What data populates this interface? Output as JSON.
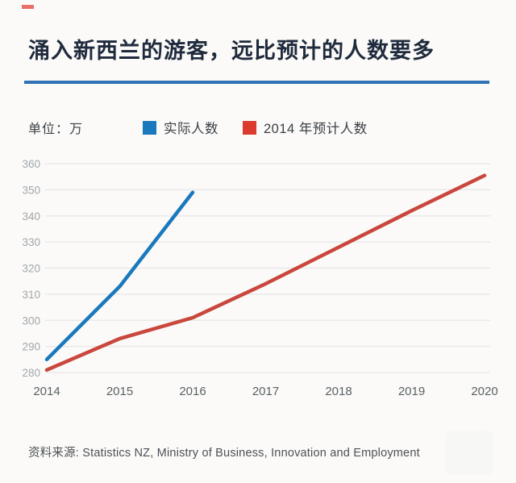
{
  "header": {
    "title": "涌入新西兰的游客，远比预计的人数要多",
    "rule_color": "#2f73b4"
  },
  "legend": {
    "unit_label": "单位：万",
    "items": [
      {
        "label": "实际人数",
        "color": "#1a79bd"
      },
      {
        "label": "2014 年预计人数",
        "color": "#da3b2e"
      }
    ]
  },
  "footer": {
    "source": "资料来源: Statistics NZ, Ministry of Business, Innovation and Employment"
  },
  "colors": {
    "actual_line": "#1a79bd",
    "predicted_line": "#c9473c",
    "gridline": "#e9e9ec",
    "title": "#1f2b3d"
  },
  "chart_data": {
    "type": "line",
    "title": "涌入新西兰的游客，远比预计的人数要多",
    "ylabel": "单位：万",
    "xlabel": "",
    "grid": true,
    "legend_position": "top",
    "ylim": [
      280,
      360
    ],
    "yticks": [
      280,
      290,
      300,
      310,
      320,
      330,
      340,
      350,
      360
    ],
    "xticks": [
      2014,
      2015,
      2016,
      2017,
      2018,
      2019,
      2020
    ],
    "series": [
      {
        "name": "实际人数",
        "color": "#1a79bd",
        "x": [
          2014,
          2015,
          2016
        ],
        "values": [
          285,
          313,
          349
        ]
      },
      {
        "name": "2014 年预计人数",
        "color": "#c9473c",
        "x": [
          2014,
          2015,
          2016,
          2017,
          2018,
          2019,
          2020
        ],
        "values": [
          281,
          293,
          301,
          314,
          328,
          342,
          355.5
        ]
      }
    ]
  }
}
